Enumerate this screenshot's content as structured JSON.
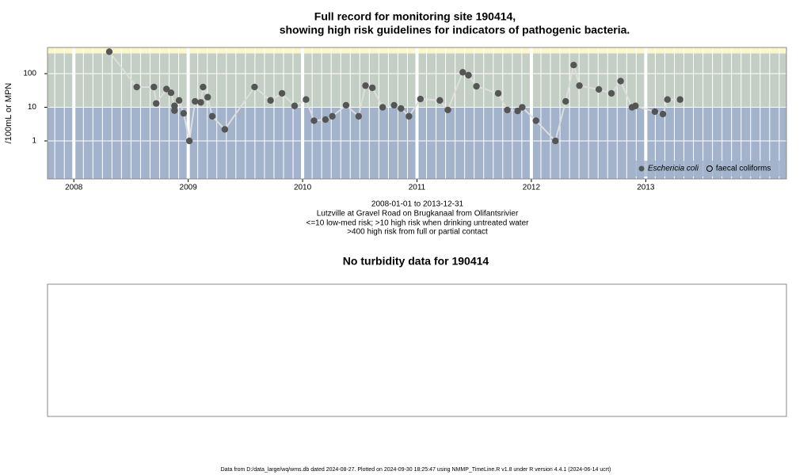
{
  "chart_data": {
    "type": "scatter",
    "title_lines": [
      "Full record for monitoring site 190414,",
      "showing high risk guidelines for indicators of pathogenic bacteria."
    ],
    "subtitle_lines": [
      "2008-01-01 to 2013-12-31",
      "Lutzville at Gravel Road on Brugkanaal from Olifantsrivier",
      "<=10 low-med risk; >10 high risk when drinking untreated water",
      ">400 high risk from full or partial contact"
    ],
    "y_label": "/100mL or MPN",
    "log_y": true,
    "xlim": [
      2007.77,
      2014.23
    ],
    "ylim": [
      0.074,
      600
    ],
    "xticks": [
      2008,
      2009,
      2010,
      2011,
      2012,
      2013
    ],
    "yticks": [
      1,
      10,
      100
    ],
    "risk_bands": [
      {
        "to": 10,
        "color": "#a3b3cc"
      },
      {
        "to": 400,
        "color": "#c3cfc4"
      },
      {
        "to": 600,
        "color": "#fbf7cd"
      }
    ],
    "x": [
      2008.31,
      2008.55,
      2008.7,
      2008.72,
      2008.81,
      2008.85,
      2008.88,
      2008.88,
      2008.92,
      2008.96,
      2009.01,
      2009.06,
      2009.11,
      2009.13,
      2009.17,
      2009.21,
      2009.32,
      2009.58,
      2009.72,
      2009.82,
      2009.93,
      2010.03,
      2010.1,
      2010.2,
      2010.26,
      2010.38,
      2010.49,
      2010.55,
      2010.61,
      2010.7,
      2010.8,
      2010.86,
      2010.93,
      2011.03,
      2011.2,
      2011.27,
      2011.4,
      2011.45,
      2011.52,
      2011.71,
      2011.79,
      2011.88,
      2011.92,
      2012.04,
      2012.21,
      2012.3,
      2012.37,
      2012.42,
      2012.59,
      2012.7,
      2012.78,
      2012.88,
      2012.91,
      2013.08,
      2013.15,
      2013.19,
      2013.3
    ],
    "series": [
      {
        "color": "#555555",
        "line_color": "#dddddd",
        "values": [
          450,
          40,
          40,
          13,
          35,
          27,
          11,
          8,
          16,
          6.6,
          1,
          15,
          14,
          40,
          20,
          5.4,
          2.2,
          40,
          16,
          26,
          11,
          17,
          4,
          4.3,
          5.4,
          11.5,
          5.4,
          44,
          38,
          10,
          11.5,
          9.2,
          5.4,
          17.6,
          16,
          8.3,
          110,
          90,
          42,
          26,
          8.3,
          7.8,
          10,
          4,
          1,
          15,
          180,
          44,
          34,
          26,
          60,
          10,
          11,
          7.4,
          6.3,
          17,
          17
        ]
      }
    ],
    "legend": {
      "corner": "bottom-right",
      "entries": [
        {
          "label": "Eschericia coli",
          "marker": "filled"
        },
        {
          "label": "faecal coliforms",
          "marker": "open"
        }
      ]
    },
    "empty_panel_title": "No turbidity data for 190414",
    "footer": "Data from D:/data_large/wq/wms.db dated 2024-08-27. Plotted on 2024-09-30 18:25:47 using NMMP_TimeLine.R v1.8 under R version 4.4.1 (2024-06-14 ucrt)"
  }
}
